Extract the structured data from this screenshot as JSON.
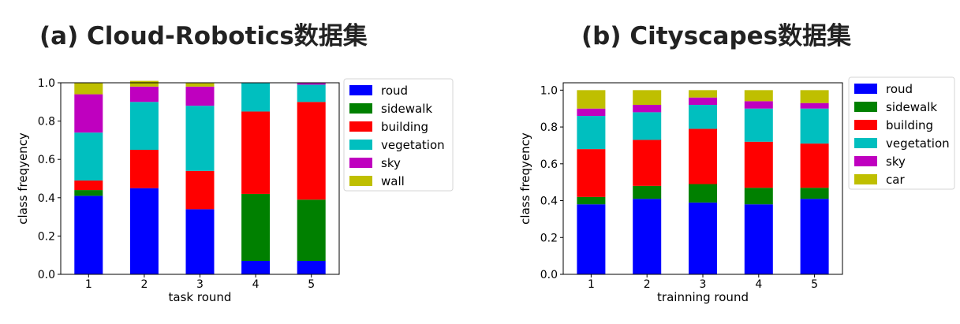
{
  "colors": {
    "roud": "#0000ff",
    "sidewalk": "#008000",
    "building": "#ff0000",
    "vegetation": "#00bfbf",
    "sky": "#bf00bf",
    "wall": "#bfbf00",
    "car": "#bfbf00"
  },
  "chart_data": [
    {
      "type": "bar",
      "stacked": true,
      "title": "(a) Cloud-Robotics数据集",
      "xlabel": "task round",
      "ylabel": "class freqyency",
      "categories": [
        "1",
        "2",
        "3",
        "4",
        "5"
      ],
      "ylim": [
        0,
        1.0
      ],
      "yticks": [
        "0.0",
        "0.2",
        "0.4",
        "0.6",
        "0.8",
        "1.0"
      ],
      "legend_position": "right",
      "series": [
        {
          "name": "roud",
          "values": [
            0.41,
            0.45,
            0.34,
            0.07,
            0.07
          ]
        },
        {
          "name": "sidewalk",
          "values": [
            0.03,
            0.0,
            0.0,
            0.35,
            0.32
          ]
        },
        {
          "name": "building",
          "values": [
            0.05,
            0.2,
            0.2,
            0.43,
            0.51
          ]
        },
        {
          "name": "vegetation",
          "values": [
            0.25,
            0.25,
            0.34,
            0.15,
            0.09
          ]
        },
        {
          "name": "sky",
          "values": [
            0.2,
            0.08,
            0.1,
            0.0,
            0.01
          ]
        },
        {
          "name": "wall",
          "values": [
            0.06,
            0.03,
            0.02,
            0.0,
            0.0
          ]
        }
      ]
    },
    {
      "type": "bar",
      "stacked": true,
      "title": "(b) Cityscapes数据集",
      "xlabel": "trainning round",
      "ylabel": "class freqyency",
      "categories": [
        "1",
        "2",
        "3",
        "4",
        "5"
      ],
      "ylim": [
        0,
        1.04
      ],
      "yticks": [
        "0.0",
        "0.2",
        "0.4",
        "0.6",
        "0.8",
        "1.0"
      ],
      "legend_position": "right",
      "series": [
        {
          "name": "roud",
          "values": [
            0.38,
            0.41,
            0.39,
            0.38,
            0.41
          ]
        },
        {
          "name": "sidewalk",
          "values": [
            0.04,
            0.07,
            0.1,
            0.09,
            0.06
          ]
        },
        {
          "name": "building",
          "values": [
            0.26,
            0.25,
            0.3,
            0.25,
            0.24
          ]
        },
        {
          "name": "vegetation",
          "values": [
            0.18,
            0.15,
            0.13,
            0.18,
            0.19
          ]
        },
        {
          "name": "sky",
          "values": [
            0.04,
            0.04,
            0.04,
            0.04,
            0.03
          ]
        },
        {
          "name": "car",
          "values": [
            0.1,
            0.08,
            0.04,
            0.06,
            0.07
          ]
        }
      ]
    }
  ]
}
